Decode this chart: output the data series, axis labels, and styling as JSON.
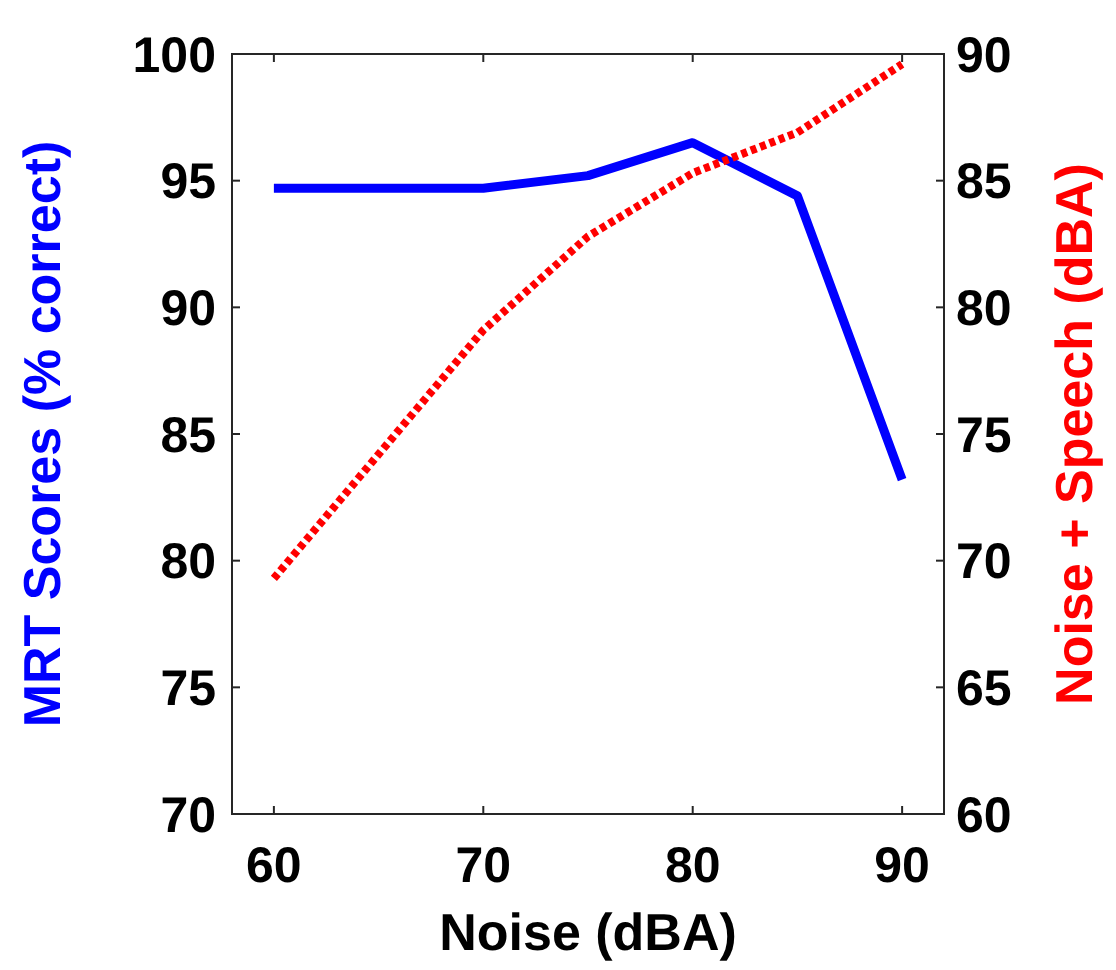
{
  "chart_data": {
    "type": "line",
    "xlabel": "Noise (dBA)",
    "ylabel": "MRT Scores (% correct)",
    "y2label": "Noise + Speech (dBA)",
    "x": [
      60,
      70,
      75,
      80,
      85,
      90
    ],
    "xlim": [
      58,
      92
    ],
    "xticks": [
      60,
      70,
      80,
      90
    ],
    "ylim": [
      70,
      100
    ],
    "yticks": [
      70,
      75,
      80,
      85,
      90,
      95,
      100
    ],
    "y2lim": [
      60,
      90
    ],
    "y2ticks": [
      60,
      65,
      70,
      75,
      80,
      85,
      90
    ],
    "series": [
      {
        "color": "#0000ff",
        "values": [
          94.7,
          94.7,
          95.2,
          96.5,
          94.4,
          83.2
        ],
        "line_style": "solid"
      },
      {
        "color": "#ff0000",
        "values": [
          69.3,
          79.1,
          82.8,
          85.3,
          86.9,
          89.6
        ],
        "axis": "y2",
        "line_style": "dotted"
      }
    ]
  }
}
